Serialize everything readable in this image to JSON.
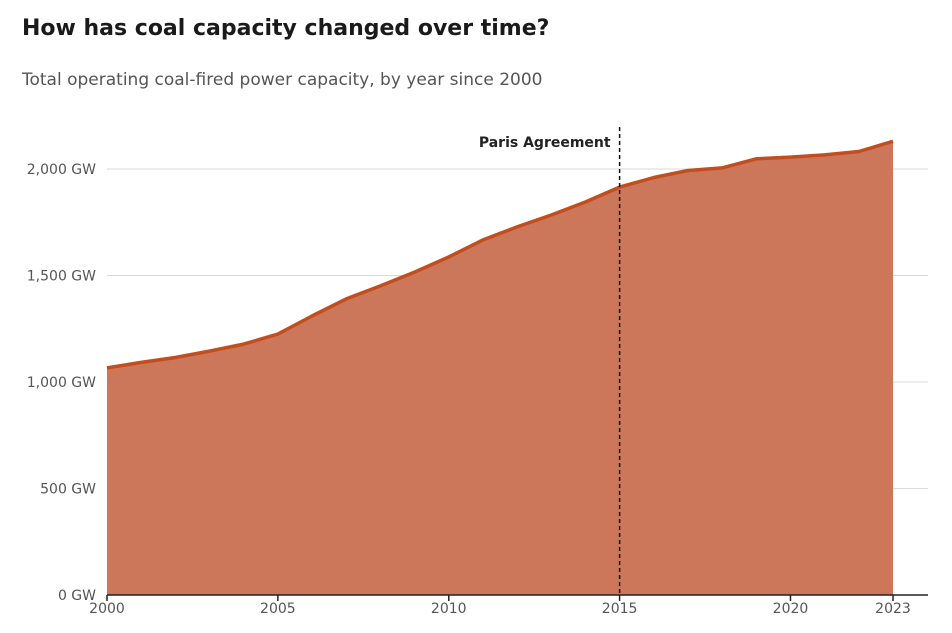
{
  "chart_data": {
    "type": "area",
    "title": "How has coal capacity changed over time?",
    "subtitle": "Total operating coal-fired power capacity, by year since 2000",
    "xlabel": "",
    "ylabel": "",
    "x": [
      2000,
      2001,
      2002,
      2003,
      2004,
      2005,
      2006,
      2007,
      2008,
      2009,
      2010,
      2011,
      2012,
      2013,
      2014,
      2015,
      2016,
      2017,
      2018,
      2019,
      2020,
      2021,
      2022,
      2023
    ],
    "series": [
      {
        "name": "Operating coal capacity (GW)",
        "values": [
          1066,
          1092,
          1115,
          1145,
          1178,
          1225,
          1310,
          1390,
          1451,
          1516,
          1587,
          1667,
          1728,
          1784,
          1845,
          1915,
          1960,
          1993,
          2005,
          2048,
          2056,
          2066,
          2082,
          2130
        ]
      }
    ],
    "ylim": [
      0,
      2200
    ],
    "xlim": [
      2000,
      2023
    ],
    "yticks": [
      0,
      500,
      1000,
      1500,
      2000
    ],
    "ytick_labels": [
      "0 GW",
      "500 GW",
      "1,000 GW",
      "1,500 GW",
      "2,000 GW"
    ],
    "xticks": [
      2000,
      2005,
      2010,
      2015,
      2020,
      2023
    ],
    "xtick_labels": [
      "2000",
      "2005",
      "2010",
      "2015",
      "2020",
      "2023"
    ],
    "grid": true,
    "annotations": [
      {
        "x": 2015,
        "label": "Paris Agreement"
      }
    ],
    "colors": {
      "line": "#c24e1f",
      "fill": "#cc775a",
      "grid": "#d9d9d9"
    }
  }
}
